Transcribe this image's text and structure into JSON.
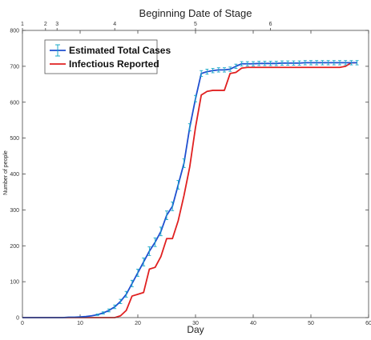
{
  "chart_data": {
    "type": "line",
    "title": "Beginning Date of Stage",
    "xlabel": "Day",
    "ylabel": "Number of people",
    "xlim": [
      0,
      60
    ],
    "ylim": [
      0,
      800
    ],
    "x_ticks": [
      "0",
      "10",
      "20",
      "30",
      "40",
      "50",
      "60"
    ],
    "y_ticks": [
      "0",
      "100",
      "200",
      "300",
      "400",
      "500",
      "600",
      "700",
      "800"
    ],
    "top_axis": {
      "ticks": [
        {
          "label": "1",
          "day": 0
        },
        {
          "label": "2",
          "day": 4
        },
        {
          "label": "3",
          "day": 6
        },
        {
          "label": "4",
          "day": 16
        },
        {
          "label": "5",
          "day": 30
        },
        {
          "label": "6",
          "day": 43
        }
      ]
    },
    "grid": false,
    "legend": {
      "position": "top-left"
    },
    "series": [
      {
        "name": "Estimated Total Cases",
        "color": "#1f4fd0",
        "errorbar_color": "#19a8c8",
        "x": [
          0,
          1,
          2,
          3,
          4,
          5,
          6,
          7,
          8,
          9,
          10,
          11,
          12,
          13,
          14,
          15,
          16,
          17,
          18,
          19,
          20,
          21,
          22,
          23,
          24,
          25,
          26,
          27,
          28,
          29,
          30,
          31,
          32,
          33,
          34,
          35,
          36,
          37,
          38,
          39,
          40,
          41,
          42,
          43,
          44,
          45,
          46,
          47,
          48,
          49,
          50,
          51,
          52,
          53,
          54,
          55,
          56,
          57,
          58
        ],
        "y": [
          0,
          0,
          0,
          0,
          0,
          0,
          0,
          0,
          1,
          1,
          2,
          3,
          5,
          8,
          13,
          20,
          30,
          45,
          65,
          95,
          125,
          155,
          185,
          210,
          240,
          285,
          310,
          370,
          430,
          530,
          610,
          680,
          685,
          688,
          690,
          690,
          692,
          700,
          707,
          707,
          707,
          708,
          708,
          708,
          708,
          709,
          709,
          709,
          709,
          710,
          710,
          710,
          710,
          710,
          710,
          710,
          710,
          710,
          710
        ],
        "error": [
          0,
          0,
          0,
          0,
          0,
          0,
          0,
          0,
          0,
          0,
          0,
          0,
          0,
          2,
          3,
          4,
          5,
          6,
          8,
          9,
          10,
          11,
          12,
          12,
          12,
          12,
          12,
          12,
          12,
          10,
          9,
          8,
          7,
          6,
          6,
          6,
          6,
          6,
          6,
          6,
          6,
          6,
          6,
          6,
          6,
          6,
          6,
          6,
          6,
          6,
          6,
          6,
          6,
          6,
          6,
          6,
          6,
          6,
          6
        ]
      },
      {
        "name": "Infectious Reported",
        "color": "#e02020",
        "x": [
          0,
          10,
          15,
          16,
          17,
          18,
          19,
          20,
          21,
          22,
          23,
          24,
          25,
          26,
          27,
          28,
          29,
          30,
          31,
          32,
          33,
          34,
          35,
          36,
          37,
          38,
          39,
          40,
          45,
          50,
          55,
          56,
          57,
          58
        ],
        "y": [
          0,
          0,
          0,
          0,
          5,
          20,
          60,
          65,
          70,
          135,
          140,
          170,
          220,
          220,
          270,
          340,
          420,
          530,
          620,
          630,
          633,
          633,
          633,
          680,
          683,
          695,
          697,
          697,
          697,
          697,
          697,
          700,
          710,
          710
        ]
      }
    ]
  }
}
